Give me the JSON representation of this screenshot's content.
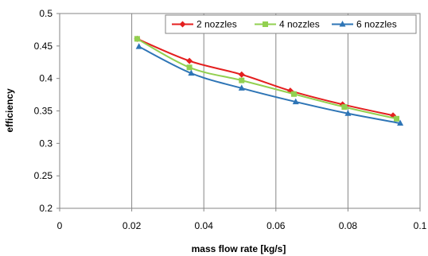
{
  "chart_data": {
    "type": "line",
    "title": "",
    "xlabel": "mass flow rate [kg/s]",
    "ylabel": "efficiency",
    "xlim": [
      0,
      0.1
    ],
    "ylim": [
      0.2,
      0.5
    ],
    "x_ticks": [
      "0",
      "0.02",
      "0.04",
      "0.06",
      "0.08",
      "0.1"
    ],
    "y_ticks": [
      "0.2",
      "0.25",
      "0.3",
      "0.35",
      "0.4",
      "0.45",
      "0.5"
    ],
    "grid": "vertical",
    "legend_position": "top-right",
    "series": [
      {
        "name": "2 nozzles",
        "color": "#e41f1f",
        "marker": "diamond",
        "x": [
          0.0215,
          0.036,
          0.0505,
          0.064,
          0.0785,
          0.0925
        ],
        "y": [
          0.461,
          0.427,
          0.406,
          0.381,
          0.36,
          0.343
        ]
      },
      {
        "name": "4 nozzles",
        "color": "#92d050",
        "marker": "square",
        "x": [
          0.0215,
          0.036,
          0.0505,
          0.065,
          0.079,
          0.0935
        ],
        "y": [
          0.461,
          0.417,
          0.397,
          0.376,
          0.356,
          0.338
        ]
      },
      {
        "name": "6 nozzles",
        "color": "#2e75b6",
        "marker": "triangle",
        "x": [
          0.022,
          0.0365,
          0.0505,
          0.0655,
          0.08,
          0.0945
        ],
        "y": [
          0.449,
          0.408,
          0.385,
          0.364,
          0.346,
          0.331
        ]
      }
    ]
  }
}
